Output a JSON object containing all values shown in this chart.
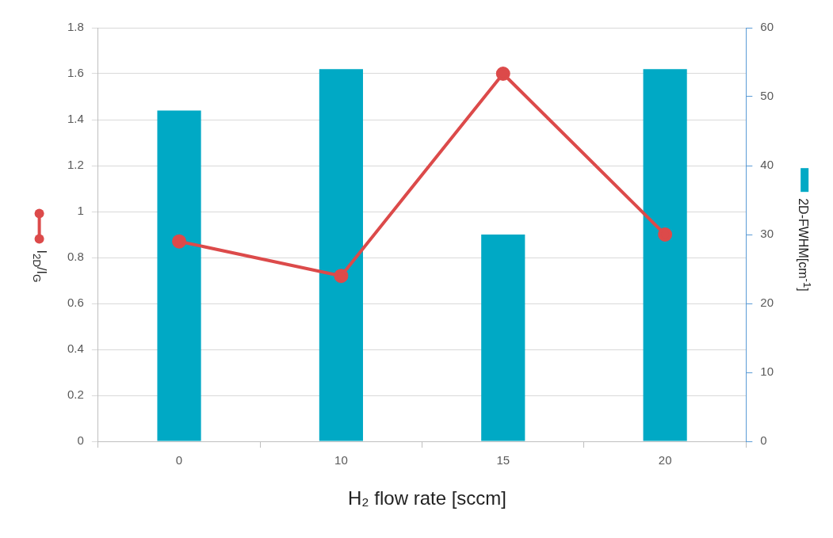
{
  "chart_data": {
    "type": "bar",
    "categories": [
      "0",
      "10",
      "15",
      "20"
    ],
    "xlabel": "H₂ flow rate [sccm]",
    "ylabel": "I$_{2D}$/I$_{G}$",
    "y2label": "2D-FWHM[cm$^{-1}$]",
    "ylim": [
      0,
      1.8
    ],
    "yticks": [
      0,
      0.2,
      0.4,
      0.6,
      0.8,
      1,
      1.2,
      1.4,
      1.6,
      1.8
    ],
    "y2lim": [
      0,
      60
    ],
    "y2ticks": [
      0,
      10,
      20,
      30,
      40,
      50,
      60
    ],
    "grid": "y",
    "marker": "circle",
    "series": [
      {
        "axis": "y2",
        "color": "#00a9c5",
        "values": [
          48,
          54,
          30,
          54
        ]
      },
      {
        "type": "line",
        "axis": "y",
        "color": "#dc4a4a",
        "values": [
          0.87,
          0.72,
          1.6,
          0.9
        ]
      }
    ]
  }
}
